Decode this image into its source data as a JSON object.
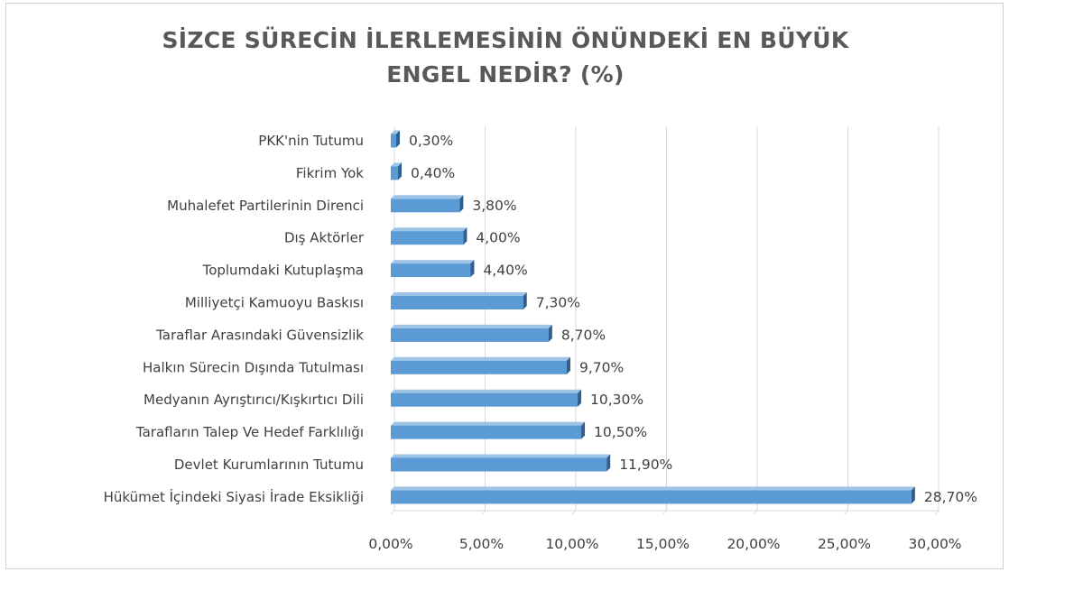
{
  "chart_data": {
    "type": "bar",
    "orientation": "horizontal",
    "title_lines": [
      "SİZCE SÜRECİN İLERLEMESİNİN ÖNÜNDEKİ EN BÜYÜK",
      "ENGEL NEDİR? (%)"
    ],
    "categories": [
      "PKK'nin Tutumu",
      "Fikrim Yok",
      "Muhalefet Partilerinin Direnci",
      "Dış Aktörler",
      "Toplumdaki Kutuplaşma",
      "Milliyetçi Kamuoyu Baskısı",
      "Taraflar Arasındaki Güvensizlik",
      "Halkın Sürecin Dışında Tutulması",
      "Medyanın Ayrıştırıcı/Kışkırtıcı Dili",
      "Tarafların Talep Ve Hedef Farklılığı",
      "Devlet Kurumlarının Tutumu",
      "Hükümet İçindeki Siyasi İrade Eksikliği"
    ],
    "values": [
      0.3,
      0.4,
      3.8,
      4.0,
      4.4,
      7.3,
      8.7,
      9.7,
      10.3,
      10.5,
      11.9,
      28.7
    ],
    "value_labels": [
      "0,30%",
      "0,40%",
      "3,80%",
      "4,00%",
      "4,40%",
      "7,30%",
      "8,70%",
      "9,70%",
      "10,30%",
      "10,50%",
      "11,90%",
      "28,70%"
    ],
    "x_ticks": [
      0,
      5,
      10,
      15,
      20,
      25,
      30
    ],
    "x_tick_labels": [
      "0,00%",
      "5,00%",
      "10,00%",
      "15,00%",
      "20,00%",
      "25,00%",
      "30,00%"
    ],
    "xlim": [
      0,
      30
    ],
    "grid": true,
    "legend": "none",
    "colors": {
      "bar": "#5b9bd5",
      "bar_side": "#2e5f8f",
      "bar_top": "#9dc3e6",
      "grid": "#d9d9d9",
      "text": "#404040"
    }
  }
}
